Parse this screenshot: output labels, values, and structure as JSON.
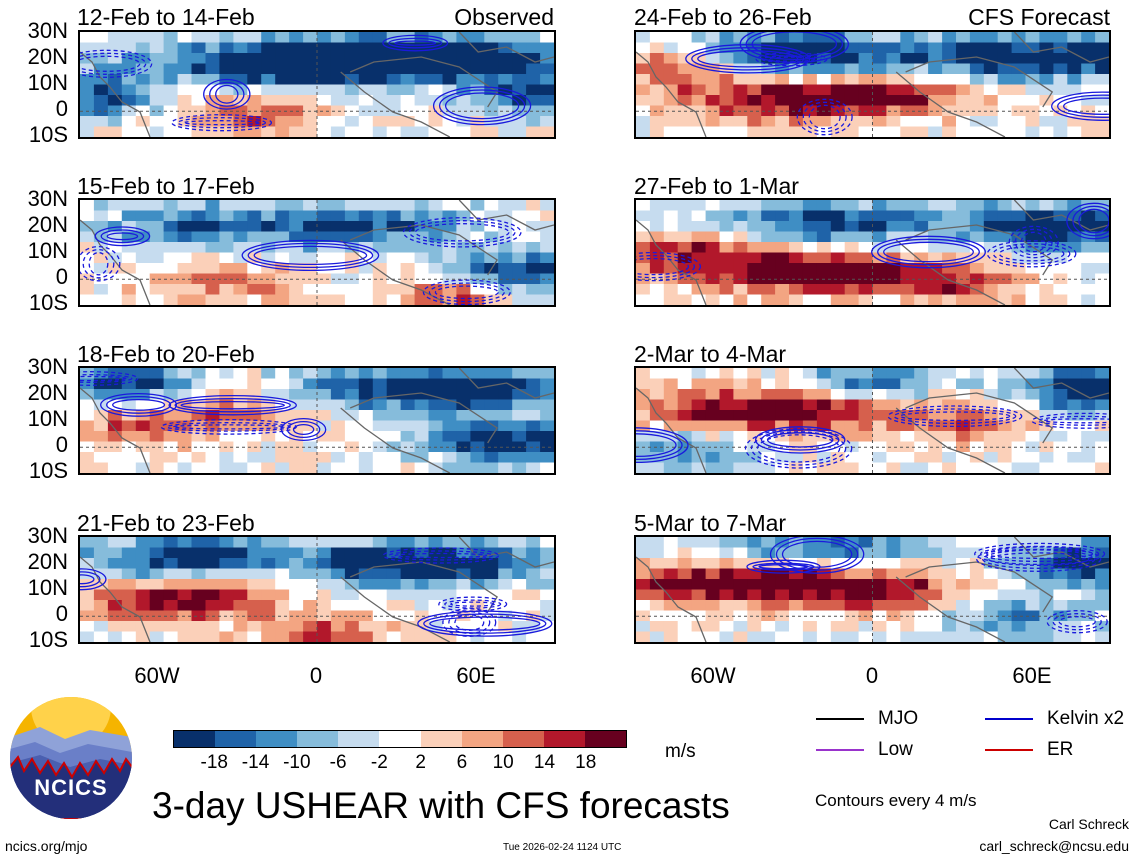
{
  "chart_data": {
    "type": "heatmap",
    "title": "3-day USHEAR with CFS forecasts",
    "latitude_labels": [
      "30N",
      "20N",
      "10N",
      "0",
      "10S"
    ],
    "longitude_labels": [
      "60W",
      "0",
      "60E"
    ],
    "column_labels": {
      "observed": "Observed",
      "forecast": "CFS Forecast"
    },
    "panels": [
      {
        "id": "obs-1",
        "column": "observed",
        "period": "12-Feb to 14-Feb"
      },
      {
        "id": "obs-2",
        "column": "observed",
        "period": "15-Feb to 17-Feb"
      },
      {
        "id": "obs-3",
        "column": "observed",
        "period": "18-Feb to 20-Feb"
      },
      {
        "id": "obs-4",
        "column": "observed",
        "period": "21-Feb to 23-Feb"
      },
      {
        "id": "fc-1",
        "column": "forecast",
        "period": "24-Feb to 26-Feb"
      },
      {
        "id": "fc-2",
        "column": "forecast",
        "period": "27-Feb to 1-Mar"
      },
      {
        "id": "fc-3",
        "column": "forecast",
        "period": "2-Mar to 4-Mar"
      },
      {
        "id": "fc-4",
        "column": "forecast",
        "period": "5-Mar to 7-Mar"
      }
    ],
    "colorbar": {
      "ticks": [
        "-18",
        "-14",
        "-10",
        "-6",
        "-2",
        "2",
        "6",
        "10",
        "14",
        "18"
      ],
      "colors": [
        "#08306b",
        "#1f63a8",
        "#3f8ec4",
        "#86bcdb",
        "#c6dcef",
        "#ffffff",
        "#fbd0b9",
        "#f3a582",
        "#d6604d",
        "#b2182b",
        "#67001f"
      ],
      "units": "m/s"
    },
    "legend": [
      {
        "label": "MJO",
        "color": "#000000"
      },
      {
        "label": "Kelvin x2",
        "color": "#0000cc"
      },
      {
        "label": "Low",
        "color": "#9933cc"
      },
      {
        "label": "ER",
        "color": "#cc0000"
      }
    ],
    "contour_note": "Contours every 4 m/s"
  },
  "logo": {
    "text": "NCICS"
  },
  "footer": {
    "left": "ncics.org/mjo",
    "timestamp": "Tue 2026-02-24 1124 UTC",
    "author": "Carl Schreck",
    "email": "carl_schreck@ncsu.edu"
  }
}
